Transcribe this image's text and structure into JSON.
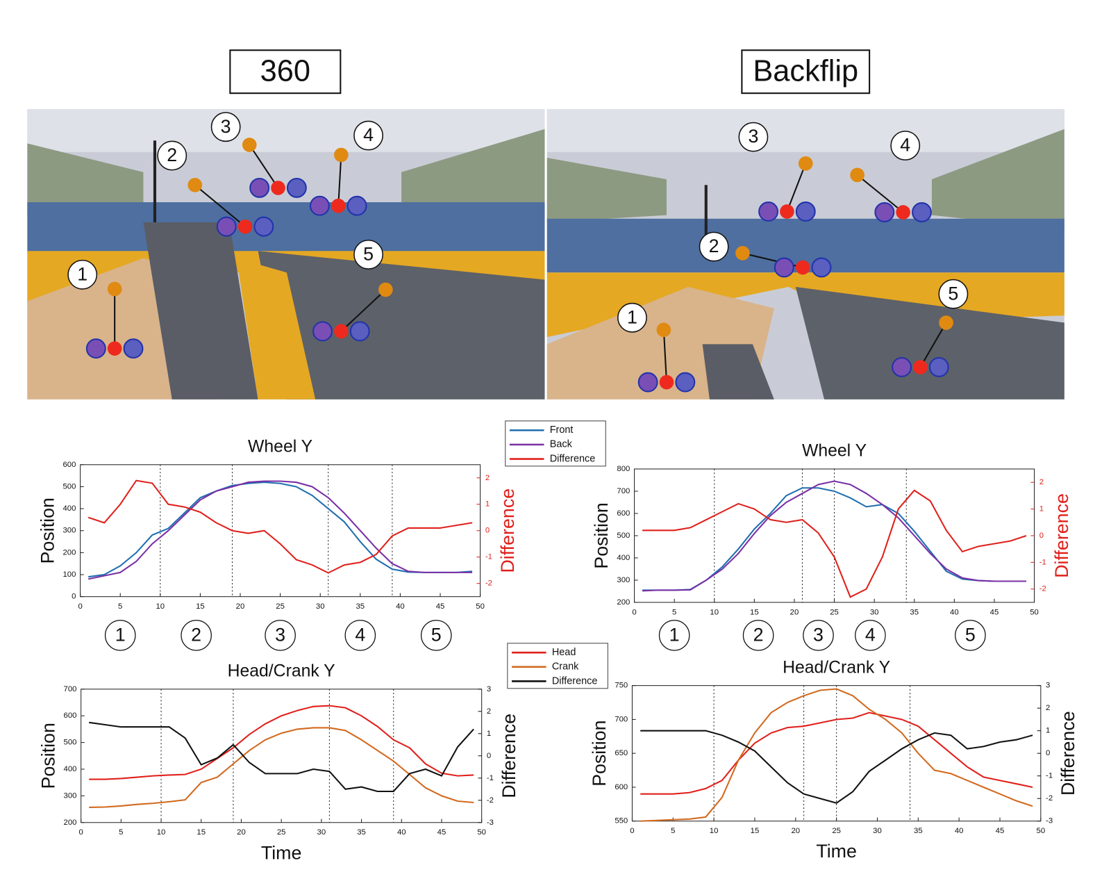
{
  "panels": [
    {
      "title": "360",
      "markers": [
        "1",
        "2",
        "3",
        "4",
        "5"
      ]
    },
    {
      "title": "Backflip",
      "markers": [
        "1",
        "2",
        "3",
        "4",
        "5"
      ]
    }
  ],
  "chart_data": [
    {
      "type": "line",
      "title": "Wheel Y",
      "ylabel": "Position",
      "y2label": "Difference",
      "x": [
        1,
        3,
        5,
        7,
        9,
        11,
        13,
        15,
        17,
        19,
        21,
        23,
        25,
        27,
        29,
        31,
        33,
        35,
        37,
        39,
        41,
        43,
        45,
        47,
        49
      ],
      "series": [
        {
          "name": "Front",
          "color": "#1f6fb0",
          "values": [
            90,
            100,
            140,
            200,
            280,
            310,
            380,
            450,
            480,
            505,
            515,
            520,
            515,
            500,
            460,
            400,
            340,
            250,
            170,
            125,
            112,
            110,
            110,
            110,
            115
          ]
        },
        {
          "name": "Back",
          "color": "#7a2fa6",
          "values": [
            80,
            95,
            110,
            160,
            240,
            300,
            370,
            440,
            480,
            500,
            520,
            525,
            525,
            520,
            500,
            450,
            380,
            300,
            220,
            150,
            115,
            110,
            110,
            110,
            110
          ]
        },
        {
          "name": "Difference",
          "color": "#e0201b",
          "axis": "y2",
          "values": [
            0.5,
            0.3,
            1.0,
            1.9,
            1.8,
            1.0,
            0.9,
            0.7,
            0.3,
            0.0,
            -0.1,
            0.0,
            -0.5,
            -1.1,
            -1.3,
            -1.6,
            -1.3,
            -1.2,
            -0.9,
            -0.2,
            0.1,
            0.1,
            0.1,
            0.2,
            0.3
          ]
        }
      ],
      "xlim": [
        0,
        50
      ],
      "xticks": [
        0,
        5,
        10,
        15,
        20,
        25,
        30,
        35,
        40,
        45,
        50
      ],
      "ylim": [
        0,
        600
      ],
      "yticks": [
        0,
        100,
        200,
        300,
        400,
        500,
        600
      ],
      "y2lim": [
        -2.5,
        2.5
      ],
      "y2ticks": [
        -2,
        -1,
        0,
        1,
        2
      ],
      "legend": "outside-right",
      "phase_boundaries": [
        10,
        19,
        31,
        39
      ],
      "phase_labels": [
        "1",
        "2",
        "3",
        "4",
        "5"
      ]
    },
    {
      "type": "line",
      "title": "Wheel Y",
      "ylabel": "Position",
      "y2label": "Difference",
      "x": [
        1,
        3,
        5,
        7,
        9,
        11,
        13,
        15,
        17,
        19,
        21,
        23,
        25,
        27,
        29,
        31,
        33,
        35,
        37,
        39,
        41,
        43,
        45,
        47,
        49
      ],
      "series": [
        {
          "name": "Front",
          "color": "#1f6fb0",
          "values": [
            255,
            255,
            255,
            258,
            300,
            360,
            440,
            530,
            600,
            680,
            715,
            715,
            700,
            670,
            630,
            640,
            600,
            520,
            430,
            340,
            305,
            298,
            295,
            295,
            295
          ]
        },
        {
          "name": "Back",
          "color": "#7a2fa6",
          "values": [
            252,
            255,
            255,
            256,
            300,
            350,
            420,
            510,
            590,
            650,
            690,
            730,
            745,
            730,
            690,
            640,
            580,
            500,
            420,
            350,
            310,
            298,
            295,
            295,
            295
          ]
        },
        {
          "name": "Difference",
          "color": "#e0201b",
          "axis": "y2",
          "values": [
            0.2,
            0.2,
            0.2,
            0.3,
            0.6,
            0.9,
            1.2,
            1.0,
            0.6,
            0.5,
            0.6,
            0.1,
            -0.8,
            -2.3,
            -2.0,
            -0.8,
            1.0,
            1.7,
            1.3,
            0.2,
            -0.6,
            -0.4,
            -0.3,
            -0.2,
            0.0
          ]
        }
      ],
      "xlim": [
        0,
        50
      ],
      "xticks": [
        0,
        5,
        10,
        15,
        20,
        25,
        30,
        35,
        40,
        45,
        50
      ],
      "ylim": [
        200,
        800
      ],
      "yticks": [
        200,
        300,
        400,
        500,
        600,
        700,
        800
      ],
      "y2lim": [
        -2.5,
        2.5
      ],
      "y2ticks": [
        -2,
        -1,
        0,
        1,
        2
      ],
      "legend": false,
      "phase_boundaries": [
        10,
        21,
        25,
        34
      ],
      "phase_labels": [
        "1",
        "2",
        "3",
        "4",
        "5"
      ]
    },
    {
      "type": "line",
      "title": "Head/Crank Y",
      "xlabel": "Time",
      "ylabel": "Position",
      "y2label": "Difference",
      "x": [
        1,
        3,
        5,
        7,
        9,
        11,
        13,
        15,
        17,
        19,
        21,
        23,
        25,
        27,
        29,
        31,
        33,
        35,
        37,
        39,
        41,
        43,
        45,
        47,
        49
      ],
      "series": [
        {
          "name": "Head",
          "color": "#e0201b",
          "values": [
            362,
            362,
            365,
            370,
            375,
            378,
            380,
            400,
            440,
            480,
            530,
            570,
            600,
            620,
            635,
            638,
            630,
            600,
            560,
            510,
            480,
            420,
            385,
            375,
            378
          ]
        },
        {
          "name": "Crank",
          "color": "#d2691e",
          "values": [
            257,
            258,
            262,
            268,
            272,
            278,
            285,
            350,
            370,
            420,
            470,
            510,
            535,
            550,
            555,
            555,
            545,
            510,
            470,
            430,
            380,
            330,
            300,
            280,
            275
          ]
        },
        {
          "name": "Difference",
          "color": "#111111",
          "axis": "y2",
          "values": [
            1.5,
            1.4,
            1.3,
            1.3,
            1.3,
            1.3,
            0.8,
            -0.4,
            -0.1,
            0.5,
            -0.3,
            -0.8,
            -0.8,
            -0.8,
            -0.6,
            -0.7,
            -1.5,
            -1.4,
            -1.6,
            -1.6,
            -0.8,
            -0.6,
            -0.9,
            0.4,
            1.2
          ]
        }
      ],
      "xlim": [
        0,
        50
      ],
      "xticks": [
        0,
        5,
        10,
        15,
        20,
        25,
        30,
        35,
        40,
        45,
        50
      ],
      "ylim": [
        200,
        700
      ],
      "yticks": [
        200,
        300,
        400,
        500,
        600,
        700
      ],
      "y2lim": [
        -3,
        3
      ],
      "y2ticks": [
        -3,
        -2,
        -1,
        0,
        1,
        2,
        3
      ],
      "legend": "outside-right",
      "phase_boundaries": [
        10,
        19,
        31,
        39
      ]
    },
    {
      "type": "line",
      "title": "Head/Crank Y",
      "xlabel": "Time",
      "ylabel": "Position",
      "y2label": "Difference",
      "x": [
        1,
        3,
        5,
        7,
        9,
        11,
        13,
        15,
        17,
        19,
        21,
        23,
        25,
        27,
        29,
        31,
        33,
        35,
        37,
        39,
        41,
        43,
        45,
        47,
        49
      ],
      "series": [
        {
          "name": "Head",
          "color": "#e0201b",
          "values": [
            590,
            590,
            590,
            592,
            598,
            610,
            640,
            665,
            680,
            688,
            690,
            695,
            700,
            702,
            710,
            705,
            700,
            690,
            670,
            650,
            630,
            615,
            610,
            605,
            600
          ]
        },
        {
          "name": "Crank",
          "color": "#d2691e",
          "values": [
            550,
            551,
            552,
            553,
            556,
            585,
            640,
            680,
            710,
            725,
            735,
            743,
            745,
            735,
            715,
            700,
            680,
            650,
            625,
            620,
            610,
            600,
            590,
            580,
            572
          ]
        },
        {
          "name": "Difference",
          "color": "#111111",
          "axis": "y2",
          "values": [
            1.0,
            1.0,
            1.0,
            1.0,
            1.0,
            0.8,
            0.5,
            0.1,
            -0.6,
            -1.3,
            -1.8,
            -2.0,
            -2.2,
            -1.7,
            -0.8,
            -0.3,
            0.2,
            0.6,
            0.9,
            0.8,
            0.2,
            0.3,
            0.5,
            0.6,
            0.8
          ]
        }
      ],
      "xlim": [
        0,
        50
      ],
      "xticks": [
        0,
        5,
        10,
        15,
        20,
        25,
        30,
        35,
        40,
        45,
        50
      ],
      "ylim": [
        550,
        750
      ],
      "yticks": [
        550,
        600,
        650,
        700,
        750
      ],
      "y2lim": [
        -3,
        3
      ],
      "y2ticks": [
        -3,
        -2,
        -1,
        0,
        1,
        2,
        3
      ],
      "legend": false,
      "phase_boundaries": [
        10,
        21,
        25,
        34
      ]
    }
  ]
}
